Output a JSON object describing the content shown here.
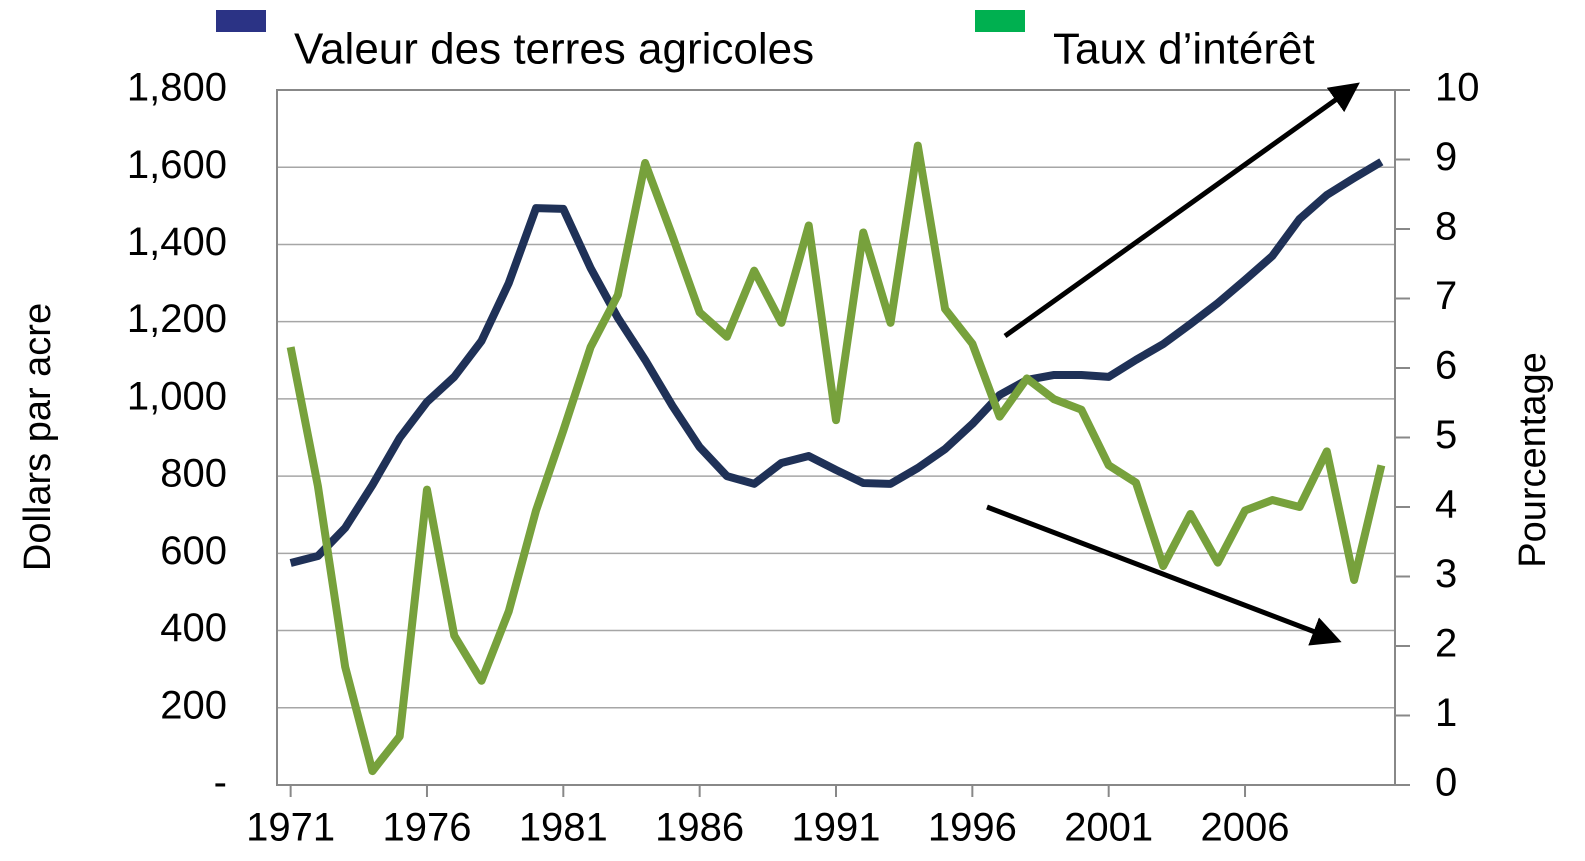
{
  "chart_data": {
    "type": "line",
    "x": [
      1971,
      1972,
      1973,
      1974,
      1975,
      1976,
      1977,
      1978,
      1979,
      1980,
      1981,
      1982,
      1983,
      1984,
      1985,
      1986,
      1987,
      1988,
      1989,
      1990,
      1991,
      1992,
      1993,
      1994,
      1995,
      1996,
      1997,
      1998,
      1999,
      2000,
      2001,
      2002,
      2003,
      2004,
      2005,
      2006,
      2007,
      2008,
      2009,
      2010,
      2011
    ],
    "series": [
      {
        "name": "Valeur des terres agricoles",
        "color": "#1f3157",
        "legend_color": "#2b3385",
        "values": [
          575,
          593,
          666,
          777,
          899,
          992,
          1057,
          1150,
          1300,
          1494,
          1492,
          1339,
          1210,
          1101,
          982,
          875,
          800,
          780,
          834,
          852,
          816,
          782,
          780,
          821,
          870,
          935,
          1010,
          1049,
          1062,
          1062,
          1057,
          1101,
          1142,
          1194,
          1248,
          1308,
          1370,
          1466,
          1528,
          1572,
          1614
        ]
      },
      {
        "name": "Taux d’intérêt",
        "color": "#77a13c",
        "legend_color": "#00b050",
        "axis": "y2",
        "values": [
          6.3,
          4.3,
          1.7,
          0.2,
          0.7,
          4.25,
          2.15,
          1.5,
          2.5,
          3.95,
          5.1,
          6.3,
          7.05,
          8.95,
          7.9,
          6.8,
          6.45,
          7.4,
          6.65,
          8.05,
          5.25,
          7.95,
          6.65,
          9.2,
          6.85,
          6.35,
          5.3,
          5.85,
          5.55,
          5.4,
          4.6,
          4.35,
          3.15,
          3.9,
          3.2,
          3.95,
          4.1,
          4.0,
          4.8,
          2.95,
          4.6
        ]
      }
    ],
    "xlim": [
      1970.5,
      2011.5
    ],
    "xticks": [
      1971,
      1976,
      1981,
      1986,
      1991,
      1996,
      2001,
      2006
    ],
    "ylim": [
      0,
      1800
    ],
    "yticks": [
      {
        "value": 0,
        "label": "-"
      },
      {
        "value": 200,
        "label": "200"
      },
      {
        "value": 400,
        "label": "400"
      },
      {
        "value": 600,
        "label": "600"
      },
      {
        "value": 800,
        "label": "800"
      },
      {
        "value": 1000,
        "label": "1,000"
      },
      {
        "value": 1200,
        "label": "1,200"
      },
      {
        "value": 1400,
        "label": "1,400"
      },
      {
        "value": 1600,
        "label": "1,600"
      },
      {
        "value": 1800,
        "label": "1,800"
      }
    ],
    "y2lim": [
      0,
      10
    ],
    "y2ticks": [
      0,
      1,
      2,
      3,
      4,
      5,
      6,
      7,
      8,
      9,
      10
    ],
    "ylabel": "Dollars par acre",
    "y2label": "Pourcentage",
    "grid": true
  }
}
